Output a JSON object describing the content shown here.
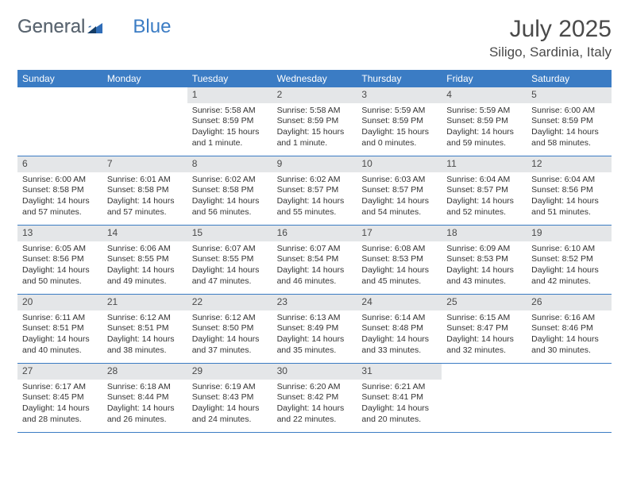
{
  "logo": {
    "text1": "General",
    "text2": "Blue"
  },
  "title": "July 2025",
  "location": "Siligo, Sardinia, Italy",
  "colors": {
    "header_bg": "#3b7cc4",
    "header_text": "#ffffff",
    "daynum_bg": "#e4e6e8",
    "text": "#333333",
    "divider": "#3b7cc4",
    "logo_gray": "#5a6570",
    "logo_blue": "#3b7cc4"
  },
  "day_names": [
    "Sunday",
    "Monday",
    "Tuesday",
    "Wednesday",
    "Thursday",
    "Friday",
    "Saturday"
  ],
  "weeks": [
    [
      {
        "n": "",
        "lines": []
      },
      {
        "n": "",
        "lines": []
      },
      {
        "n": "1",
        "lines": [
          "Sunrise: 5:58 AM",
          "Sunset: 8:59 PM",
          "Daylight: 15 hours",
          "and 1 minute."
        ]
      },
      {
        "n": "2",
        "lines": [
          "Sunrise: 5:58 AM",
          "Sunset: 8:59 PM",
          "Daylight: 15 hours",
          "and 1 minute."
        ]
      },
      {
        "n": "3",
        "lines": [
          "Sunrise: 5:59 AM",
          "Sunset: 8:59 PM",
          "Daylight: 15 hours",
          "and 0 minutes."
        ]
      },
      {
        "n": "4",
        "lines": [
          "Sunrise: 5:59 AM",
          "Sunset: 8:59 PM",
          "Daylight: 14 hours",
          "and 59 minutes."
        ]
      },
      {
        "n": "5",
        "lines": [
          "Sunrise: 6:00 AM",
          "Sunset: 8:59 PM",
          "Daylight: 14 hours",
          "and 58 minutes."
        ]
      }
    ],
    [
      {
        "n": "6",
        "lines": [
          "Sunrise: 6:00 AM",
          "Sunset: 8:58 PM",
          "Daylight: 14 hours",
          "and 57 minutes."
        ]
      },
      {
        "n": "7",
        "lines": [
          "Sunrise: 6:01 AM",
          "Sunset: 8:58 PM",
          "Daylight: 14 hours",
          "and 57 minutes."
        ]
      },
      {
        "n": "8",
        "lines": [
          "Sunrise: 6:02 AM",
          "Sunset: 8:58 PM",
          "Daylight: 14 hours",
          "and 56 minutes."
        ]
      },
      {
        "n": "9",
        "lines": [
          "Sunrise: 6:02 AM",
          "Sunset: 8:57 PM",
          "Daylight: 14 hours",
          "and 55 minutes."
        ]
      },
      {
        "n": "10",
        "lines": [
          "Sunrise: 6:03 AM",
          "Sunset: 8:57 PM",
          "Daylight: 14 hours",
          "and 54 minutes."
        ]
      },
      {
        "n": "11",
        "lines": [
          "Sunrise: 6:04 AM",
          "Sunset: 8:57 PM",
          "Daylight: 14 hours",
          "and 52 minutes."
        ]
      },
      {
        "n": "12",
        "lines": [
          "Sunrise: 6:04 AM",
          "Sunset: 8:56 PM",
          "Daylight: 14 hours",
          "and 51 minutes."
        ]
      }
    ],
    [
      {
        "n": "13",
        "lines": [
          "Sunrise: 6:05 AM",
          "Sunset: 8:56 PM",
          "Daylight: 14 hours",
          "and 50 minutes."
        ]
      },
      {
        "n": "14",
        "lines": [
          "Sunrise: 6:06 AM",
          "Sunset: 8:55 PM",
          "Daylight: 14 hours",
          "and 49 minutes."
        ]
      },
      {
        "n": "15",
        "lines": [
          "Sunrise: 6:07 AM",
          "Sunset: 8:55 PM",
          "Daylight: 14 hours",
          "and 47 minutes."
        ]
      },
      {
        "n": "16",
        "lines": [
          "Sunrise: 6:07 AM",
          "Sunset: 8:54 PM",
          "Daylight: 14 hours",
          "and 46 minutes."
        ]
      },
      {
        "n": "17",
        "lines": [
          "Sunrise: 6:08 AM",
          "Sunset: 8:53 PM",
          "Daylight: 14 hours",
          "and 45 minutes."
        ]
      },
      {
        "n": "18",
        "lines": [
          "Sunrise: 6:09 AM",
          "Sunset: 8:53 PM",
          "Daylight: 14 hours",
          "and 43 minutes."
        ]
      },
      {
        "n": "19",
        "lines": [
          "Sunrise: 6:10 AM",
          "Sunset: 8:52 PM",
          "Daylight: 14 hours",
          "and 42 minutes."
        ]
      }
    ],
    [
      {
        "n": "20",
        "lines": [
          "Sunrise: 6:11 AM",
          "Sunset: 8:51 PM",
          "Daylight: 14 hours",
          "and 40 minutes."
        ]
      },
      {
        "n": "21",
        "lines": [
          "Sunrise: 6:12 AM",
          "Sunset: 8:51 PM",
          "Daylight: 14 hours",
          "and 38 minutes."
        ]
      },
      {
        "n": "22",
        "lines": [
          "Sunrise: 6:12 AM",
          "Sunset: 8:50 PM",
          "Daylight: 14 hours",
          "and 37 minutes."
        ]
      },
      {
        "n": "23",
        "lines": [
          "Sunrise: 6:13 AM",
          "Sunset: 8:49 PM",
          "Daylight: 14 hours",
          "and 35 minutes."
        ]
      },
      {
        "n": "24",
        "lines": [
          "Sunrise: 6:14 AM",
          "Sunset: 8:48 PM",
          "Daylight: 14 hours",
          "and 33 minutes."
        ]
      },
      {
        "n": "25",
        "lines": [
          "Sunrise: 6:15 AM",
          "Sunset: 8:47 PM",
          "Daylight: 14 hours",
          "and 32 minutes."
        ]
      },
      {
        "n": "26",
        "lines": [
          "Sunrise: 6:16 AM",
          "Sunset: 8:46 PM",
          "Daylight: 14 hours",
          "and 30 minutes."
        ]
      }
    ],
    [
      {
        "n": "27",
        "lines": [
          "Sunrise: 6:17 AM",
          "Sunset: 8:45 PM",
          "Daylight: 14 hours",
          "and 28 minutes."
        ]
      },
      {
        "n": "28",
        "lines": [
          "Sunrise: 6:18 AM",
          "Sunset: 8:44 PM",
          "Daylight: 14 hours",
          "and 26 minutes."
        ]
      },
      {
        "n": "29",
        "lines": [
          "Sunrise: 6:19 AM",
          "Sunset: 8:43 PM",
          "Daylight: 14 hours",
          "and 24 minutes."
        ]
      },
      {
        "n": "30",
        "lines": [
          "Sunrise: 6:20 AM",
          "Sunset: 8:42 PM",
          "Daylight: 14 hours",
          "and 22 minutes."
        ]
      },
      {
        "n": "31",
        "lines": [
          "Sunrise: 6:21 AM",
          "Sunset: 8:41 PM",
          "Daylight: 14 hours",
          "and 20 minutes."
        ]
      },
      {
        "n": "",
        "lines": []
      },
      {
        "n": "",
        "lines": []
      }
    ]
  ]
}
